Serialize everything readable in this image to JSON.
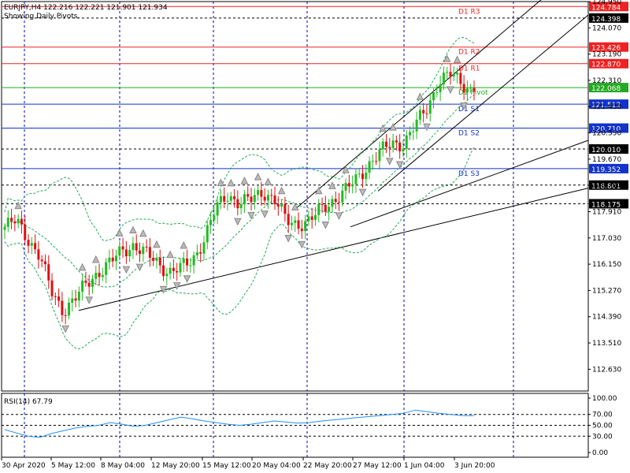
{
  "header": {
    "symbol_line": "EURJPY,H4  122.216 122.221 121.901 121.934",
    "subtitle": "Showing Daily Pivots."
  },
  "rsi": {
    "label": "RSI(14) 67.79"
  },
  "colors": {
    "bull": "#22bb22",
    "bear": "#dd1111",
    "grid": "#0000aa",
    "resistance": "#ee2222",
    "support": "#1133cc",
    "pivot": "#22aa22",
    "bands": "#22aa55",
    "rsi": "#1e90ff"
  },
  "chart_data": [
    {
      "type": "candlestick",
      "title": "EURJPY,H4",
      "ylim": [
        111.9,
        124.95
      ],
      "y_ticks": [
        "124.950",
        "124.070",
        "123.190",
        "122.310",
        "121.430",
        "120.550",
        "119.670",
        "118.790",
        "117.910",
        "117.030",
        "116.150",
        "115.270",
        "114.390",
        "113.510",
        "112.630"
      ],
      "x_ticks": [
        "30 Apr 2020",
        "5 May 12:00",
        "8 May 04:00",
        "12 May 20:00",
        "15 May 12:00",
        "20 May 04:00",
        "22 May 20:00",
        "27 May 12:00",
        "1 Jun 04:00",
        "3 Jun 20:00"
      ],
      "close_path": [
        117.4,
        117.6,
        117.0,
        116.4,
        115.2,
        114.6,
        115.0,
        115.5,
        115.9,
        116.2,
        116.6,
        116.8,
        116.5,
        116.2,
        115.9,
        116.0,
        116.3,
        117.0,
        118.0,
        118.5,
        118.2,
        118.3,
        118.6,
        118.3,
        117.6,
        117.5,
        117.6,
        118.0,
        118.3,
        118.6,
        119.0,
        119.5,
        119.9,
        120.2,
        120.2,
        120.8,
        121.4,
        122.3,
        122.5,
        122.2,
        121.93
      ],
      "pivot_levels": [
        {
          "label": "D1 R3",
          "value": "124.784",
          "kind": "resistance",
          "dashed": false
        },
        {
          "label": "",
          "value": "124.398",
          "kind": "neutral",
          "dashed": true
        },
        {
          "label": "D1 R2",
          "value": "123.426",
          "kind": "resistance",
          "dashed": false
        },
        {
          "label": "D1 R1",
          "value": "122.870",
          "kind": "resistance",
          "dashed": false
        },
        {
          "label": "D1 Pivot",
          "value": "122.068",
          "kind": "pivot",
          "dashed": false
        },
        {
          "label": "D1 S1",
          "value": "121.512",
          "kind": "support",
          "dashed": false
        },
        {
          "label": "D1 S2",
          "value": "120.710",
          "kind": "support",
          "dashed": false
        },
        {
          "label": "",
          "value": "120.010",
          "kind": "neutral",
          "dashed": true
        },
        {
          "label": "D1 S3",
          "value": "119.352",
          "kind": "support",
          "dashed": false
        },
        {
          "label": "",
          "value": "118.801",
          "kind": "neutral",
          "dashed": true
        },
        {
          "label": "",
          "value": "118.175",
          "kind": "neutral",
          "dashed": true
        }
      ]
    },
    {
      "type": "line",
      "title": "RSI(14) 67.79",
      "ylim": [
        0,
        100
      ],
      "y_ticks": [
        "100.00",
        "70.00",
        "50.00",
        "30.00",
        "0.00"
      ],
      "levels": [
        70,
        50,
        30
      ],
      "values": [
        42,
        36,
        30,
        28,
        35,
        40,
        45,
        48,
        50,
        55,
        52,
        48,
        50,
        55,
        60,
        65,
        62,
        58,
        55,
        52,
        50,
        52,
        55,
        58,
        56,
        54,
        55,
        58,
        60,
        62,
        64,
        66,
        68,
        70,
        72,
        78,
        75,
        72,
        70,
        68,
        67.79
      ]
    }
  ]
}
